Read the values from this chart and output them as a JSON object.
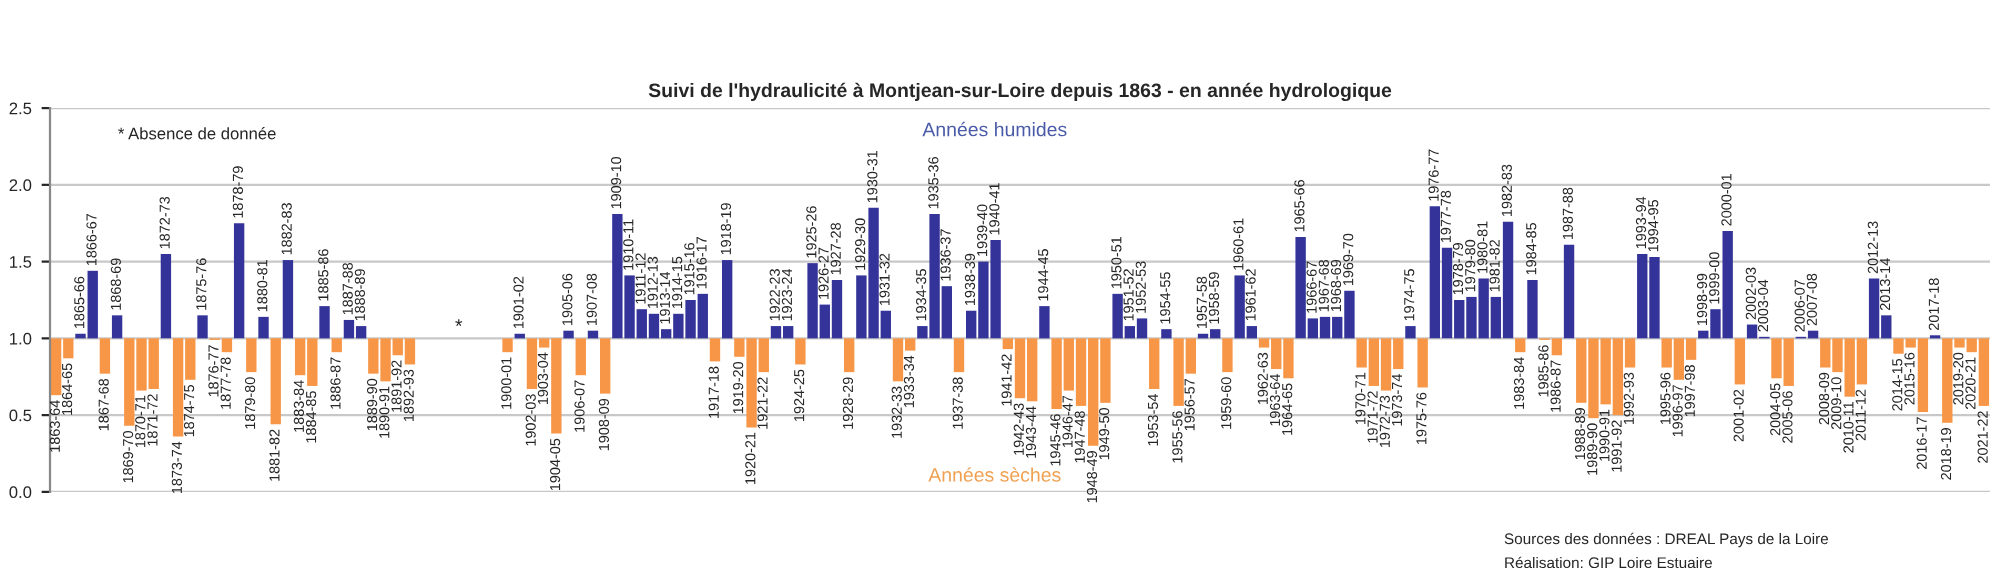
{
  "chart_data": {
    "type": "bar",
    "title": "Suivi de l'hydraulicité à Montjean-sur-Loire depuis 1863 - en année hydrologique",
    "categories": [
      "1863-64",
      "1864-65",
      "1865-66",
      "1866-67",
      "1867-68",
      "1868-69",
      "1869-70",
      "1870-71",
      "1871-72",
      "1872-73",
      "1873-74",
      "1874-75",
      "1875-76",
      "1876-77",
      "1877-78",
      "1878-79",
      "1879-80",
      "1880-81",
      "1881-82",
      "1882-83",
      "1883-84",
      "1884-85",
      "1885-86",
      "1886-87",
      "1887-88",
      "1888-89",
      "1889-90",
      "1890-91",
      "1891-92",
      "1892-93",
      null,
      null,
      null,
      null,
      null,
      null,
      null,
      "1900-01",
      "1901-02",
      "1902-03",
      "1903-04",
      "1904-05",
      "1905-06",
      "1906-07",
      "1907-08",
      "1908-09",
      "1909-10",
      "1910-11",
      "1911-12",
      "1912-13",
      "1913-14",
      "1914-15",
      "1915-16",
      "1916-17",
      "1917-18",
      "1918-19",
      "1919-20",
      "1920-21",
      "1921-22",
      "1922-23",
      "1923-24",
      "1924-25",
      "1925-26",
      "1926-27",
      "1927-28",
      "1928-29",
      "1929-30",
      "1930-31",
      "1931-32",
      "1932-33",
      "1933-34",
      "1934-35",
      "1935-36",
      "1936-37",
      "1937-38",
      "1938-39",
      "1939-40",
      "1940-41",
      "1941-42",
      "1942-43",
      "1943-44",
      "1944-45",
      "1945-46",
      "1946-47",
      "1947-48",
      "1948-49",
      "1949-50",
      "1950-51",
      "1951-52",
      "1952-53",
      "1953-54",
      "1954-55",
      "1955-56",
      "1956-57",
      "1957-58",
      "1958-59",
      "1959-60",
      "1960-61",
      "1961-62",
      "1962-63",
      "1963-64",
      "1964-65",
      "1965-66",
      "1966-67",
      "1967-68",
      "1968-69",
      "1969-70",
      "1970-71",
      "1971-72",
      "1972-73",
      "1973-74",
      "1974-75",
      "1975-76",
      "1976-77",
      "1977-78",
      "1978-79",
      "1979-80",
      "1980-81",
      "1981-82",
      "1982-83",
      "1983-84",
      "1984-85",
      "1985-86",
      "1986-87",
      "1987-88",
      "1988-89",
      "1989-90",
      "1990-91",
      "1991-92",
      "1992-93",
      "1993-94",
      "1994-95",
      "1995-96",
      "1996-97",
      "1997-98",
      "1998-99",
      "1999-00",
      "2000-01",
      "2001-02",
      "2002-03",
      "2003-04",
      "2004-05",
      "2005-06",
      "2006-07",
      "2007-08",
      "2008-09",
      "2009-10",
      "2010-11",
      "2011-12",
      "2012-13",
      "2013-14",
      "2014-15",
      "2015-16",
      "2016-17",
      "2017-18",
      "2018-19",
      "2019-20",
      "2020-21",
      "2021-22"
    ],
    "values": [
      -0.37,
      -0.13,
      0.03,
      0.44,
      -0.23,
      0.15,
      -0.57,
      -0.34,
      -0.33,
      0.55,
      -0.64,
      -0.27,
      0.15,
      -0.01,
      -0.09,
      0.75,
      -0.22,
      0.14,
      -0.56,
      0.51,
      -0.24,
      -0.31,
      0.21,
      -0.09,
      0.12,
      0.08,
      -0.23,
      -0.28,
      -0.11,
      -0.17,
      null,
      null,
      null,
      null,
      null,
      null,
      null,
      -0.09,
      0.03,
      -0.33,
      -0.06,
      -0.62,
      0.05,
      -0.24,
      0.05,
      -0.36,
      0.81,
      0.41,
      0.19,
      0.16,
      0.06,
      0.16,
      0.25,
      0.29,
      -0.15,
      0.51,
      -0.12,
      -0.58,
      -0.22,
      0.08,
      0.08,
      -0.17,
      0.49,
      0.22,
      0.38,
      -0.22,
      0.41,
      0.85,
      0.18,
      -0.28,
      -0.08,
      0.08,
      0.81,
      0.34,
      -0.22,
      0.18,
      0.5,
      0.64,
      -0.07,
      -0.39,
      -0.41,
      0.21,
      -0.46,
      -0.34,
      -0.44,
      -0.7,
      -0.42,
      0.29,
      0.08,
      0.13,
      -0.33,
      0.06,
      -0.44,
      -0.23,
      0.03,
      0.06,
      -0.22,
      0.41,
      0.08,
      -0.06,
      -0.2,
      -0.26,
      0.66,
      0.13,
      0.14,
      0.14,
      0.31,
      -0.19,
      -0.31,
      -0.34,
      -0.2,
      0.08,
      -0.32,
      0.86,
      0.59,
      0.25,
      0.27,
      0.39,
      0.27,
      0.76,
      -0.09,
      0.38,
      -0.01,
      -0.11,
      0.61,
      -0.42,
      -0.52,
      -0.43,
      -0.5,
      -0.19,
      0.55,
      0.53,
      -0.19,
      -0.27,
      -0.14,
      0.05,
      0.19,
      0.7,
      -0.3,
      0.09,
      0.01,
      -0.26,
      -0.31,
      0.01,
      0.05,
      -0.19,
      -0.22,
      -0.38,
      -0.3,
      0.39,
      0.15,
      -0.1,
      -0.06,
      -0.48,
      0.02,
      -0.55,
      -0.06,
      -0.09,
      -0.44
    ],
    "base": [
      1,
      1,
      1,
      1,
      1,
      1,
      1,
      1,
      1,
      1,
      1,
      1,
      1,
      1,
      1,
      1,
      1,
      1,
      1,
      1,
      1,
      1,
      1,
      1,
      1,
      1,
      1,
      1,
      1,
      1,
      null,
      null,
      null,
      null,
      null,
      null,
      null,
      1,
      1,
      1,
      1,
      1,
      1,
      1,
      1,
      1,
      1,
      1,
      1,
      1,
      1,
      1,
      1,
      1,
      1,
      1,
      1,
      1,
      1,
      1,
      1,
      1,
      1,
      1,
      1,
      1,
      1,
      1,
      1,
      1,
      1,
      1,
      1,
      1,
      1,
      1,
      1,
      1,
      1,
      1,
      1,
      1,
      1,
      1,
      1,
      1,
      1,
      1,
      1,
      1,
      1,
      1,
      1,
      1,
      1,
      1,
      1,
      1,
      1,
      1,
      1,
      1,
      1,
      1,
      1,
      1,
      1,
      1,
      1,
      1,
      1,
      1,
      1,
      1,
      1,
      1,
      1,
      1,
      1,
      1,
      1,
      1,
      1,
      1,
      1,
      1,
      1,
      1,
      1,
      1,
      1,
      1,
      1,
      1,
      1,
      1,
      1,
      1,
      1,
      1,
      1,
      1,
      1,
      1,
      1,
      1,
      1,
      1,
      1,
      1,
      1,
      1,
      1,
      1,
      1,
      1,
      1,
      1,
      1
    ],
    "colors": [
      "#f79646",
      "#f79646",
      "#333399",
      "#333399",
      "#f79646",
      "#333399",
      "#f79646",
      "#f79646",
      "#f79646",
      "#333399",
      "#f79646",
      "#f79646",
      "#333399",
      "#f79646",
      "#f79646",
      "#333399",
      "#f79646",
      "#333399",
      "#f79646",
      "#333399",
      "#f79646",
      "#f79646",
      "#333399",
      "#f79646",
      "#333399",
      "#333399",
      "#f79646",
      "#f79646",
      "#f79646",
      "#f79646",
      null,
      null,
      null,
      null,
      null,
      null,
      null,
      "#f79646",
      "#333399",
      "#f79646",
      "#f79646",
      "#f79646",
      "#333399",
      "#f79646",
      "#333399",
      "#f79646",
      "#333399",
      "#333399",
      "#333399",
      "#333399",
      "#333399",
      "#333399",
      "#333399",
      "#333399",
      "#f79646",
      "#333399",
      "#f79646",
      "#f79646",
      "#f79646",
      "#333399",
      "#333399",
      "#f79646",
      "#333399",
      "#333399",
      "#333399",
      "#f79646",
      "#333399",
      "#333399",
      "#333399",
      "#f79646",
      "#f79646",
      "#333399",
      "#333399",
      "#333399",
      "#f79646",
      "#333399",
      "#333399",
      "#333399",
      "#f79646",
      "#f79646",
      "#f79646",
      "#333399",
      "#f79646",
      "#f79646",
      "#f79646",
      "#f79646",
      "#f79646",
      "#333399",
      "#333399",
      "#333399",
      "#f79646",
      "#333399",
      "#f79646",
      "#f79646",
      "#333399",
      "#333399",
      "#f79646",
      "#333399",
      "#333399",
      "#f79646",
      "#f79646",
      "#f79646",
      "#333399",
      "#333399",
      "#333399",
      "#333399",
      "#333399",
      "#f79646",
      "#f79646",
      "#f79646",
      "#f79646",
      "#333399",
      "#f79646",
      "#333399",
      "#333399",
      "#333399",
      "#333399",
      "#333399",
      "#333399",
      "#333399",
      "#f79646",
      "#333399",
      "#f79646",
      "#f79646",
      "#333399",
      "#f79646",
      "#f79646",
      "#f79646",
      "#f79646",
      "#f79646",
      "#333399",
      "#333399",
      "#f79646",
      "#f79646",
      "#f79646",
      "#333399",
      "#333399",
      "#333399",
      "#f79646",
      "#333399",
      "#333399",
      "#f79646",
      "#f79646",
      "#333399",
      "#333399",
      "#f79646",
      "#f79646",
      "#f79646",
      "#f79646",
      "#333399",
      "#333399",
      "#f79646",
      "#f79646",
      "#f79646",
      "#333399",
      "#f79646",
      "#f79646",
      "#f79646",
      "#f79646"
    ],
    "ylim": [
      0,
      2.5
    ],
    "yticks": [
      {
        "value": 0,
        "label": "0.0"
      },
      {
        "value": 0.5,
        "label": "0.5"
      },
      {
        "value": 1,
        "label": "1.0"
      },
      {
        "value": 1.5,
        "label": "1.5"
      },
      {
        "value": 2,
        "label": "2.0"
      },
      {
        "value": 2.5,
        "label": "2.5"
      }
    ],
    "grid": "y",
    "annotations": [
      "* Absence de donnée",
      "*",
      "Années humides",
      "Années sèches",
      "Sources des données : DREAL Pays de la Loire",
      "Réalisation: GIP Loire Estuaire"
    ]
  }
}
